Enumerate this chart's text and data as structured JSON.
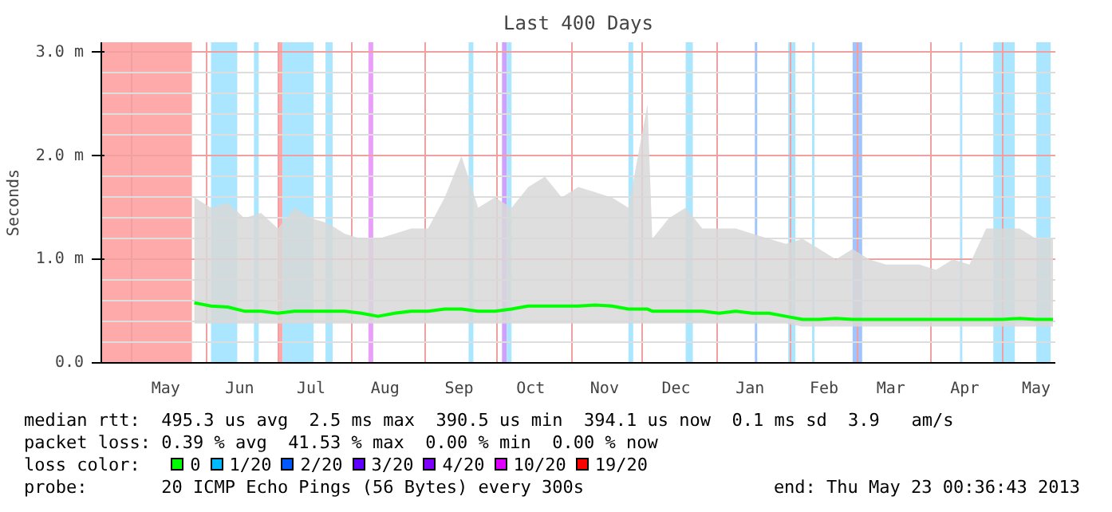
{
  "chart_data": {
    "type": "line",
    "title": "Last 400 Days",
    "ylabel": "Seconds",
    "x": [
      "2012-05-27",
      "2012-06-03",
      "2012-06-10",
      "2012-06-17",
      "2012-06-24",
      "2012-07-01",
      "2012-07-08",
      "2012-07-15",
      "2012-07-22",
      "2012-07-29",
      "2012-08-05",
      "2012-08-12",
      "2012-08-19",
      "2012-08-26",
      "2012-09-02",
      "2012-09-09",
      "2012-09-16",
      "2012-09-23",
      "2012-09-30",
      "2012-10-07",
      "2012-10-14",
      "2012-10-21",
      "2012-10-28",
      "2012-11-04",
      "2012-11-11",
      "2012-11-18",
      "2012-11-25",
      "2012-12-03",
      "2012-12-05",
      "2012-12-12",
      "2012-12-19",
      "2012-12-26",
      "2013-01-02",
      "2013-01-09",
      "2013-01-16",
      "2013-01-23",
      "2013-01-30",
      "2013-02-06",
      "2013-02-13",
      "2013-02-20",
      "2013-02-27",
      "2013-03-06",
      "2013-03-13",
      "2013-03-20",
      "2013-03-27",
      "2013-04-03",
      "2013-04-10",
      "2013-04-17",
      "2013-04-24",
      "2013-05-01",
      "2013-05-08",
      "2013-05-15",
      "2013-05-22"
    ],
    "series": [
      {
        "color": "#00ff00",
        "values": [
          0.58,
          0.55,
          0.54,
          0.5,
          0.5,
          0.48,
          0.5,
          0.5,
          0.5,
          0.5,
          0.48,
          0.45,
          0.48,
          0.5,
          0.5,
          0.52,
          0.52,
          0.5,
          0.5,
          0.52,
          0.55,
          0.55,
          0.55,
          0.55,
          0.56,
          0.55,
          0.52,
          0.52,
          0.5,
          0.5,
          0.5,
          0.5,
          0.48,
          0.5,
          0.48,
          0.48,
          0.45,
          0.42,
          0.42,
          0.43,
          0.42,
          0.42,
          0.42,
          0.42,
          0.42,
          0.42,
          0.42,
          0.42,
          0.42,
          0.42,
          0.43,
          0.42,
          0.42
        ],
        "lower": [
          0.38,
          0.38,
          0.38,
          0.38,
          0.38,
          0.38,
          0.38,
          0.38,
          0.38,
          0.38,
          0.38,
          0.38,
          0.38,
          0.38,
          0.38,
          0.38,
          0.38,
          0.38,
          0.38,
          0.38,
          0.38,
          0.38,
          0.38,
          0.38,
          0.38,
          0.38,
          0.38,
          0.38,
          0.38,
          0.38,
          0.38,
          0.38,
          0.38,
          0.38,
          0.38,
          0.38,
          0.38,
          0.35,
          0.35,
          0.35,
          0.35,
          0.35,
          0.35,
          0.35,
          0.35,
          0.35,
          0.35,
          0.35,
          0.35,
          0.35,
          0.35,
          0.35,
          0.35
        ],
        "upper": [
          1.6,
          1.5,
          1.55,
          1.4,
          1.45,
          1.3,
          1.5,
          1.4,
          1.35,
          1.25,
          1.2,
          1.2,
          1.25,
          1.3,
          1.3,
          1.6,
          2.0,
          1.5,
          1.6,
          1.5,
          1.7,
          1.8,
          1.6,
          1.7,
          1.65,
          1.6,
          1.5,
          2.5,
          1.2,
          1.4,
          1.5,
          1.3,
          1.3,
          1.3,
          1.25,
          1.2,
          1.15,
          1.2,
          1.1,
          1.0,
          1.1,
          1.0,
          0.95,
          0.95,
          0.95,
          0.9,
          1.0,
          0.95,
          1.3,
          1.3,
          1.3,
          1.2,
          1.2
        ]
      }
    ],
    "xlim": [
      "2012-04-18",
      "2013-05-23"
    ],
    "xticks": [
      {
        "value": "2012-05-01",
        "label": null
      },
      {
        "value": "2012-05-15",
        "label": "May"
      },
      {
        "value": "2012-06-01",
        "label": null
      },
      {
        "value": "2012-06-15",
        "label": "Jun"
      },
      {
        "value": "2012-07-01",
        "label": null
      },
      {
        "value": "2012-07-15",
        "label": "Jul"
      },
      {
        "value": "2012-08-01",
        "label": null
      },
      {
        "value": "2012-08-15",
        "label": "Aug"
      },
      {
        "value": "2012-09-01",
        "label": null
      },
      {
        "value": "2012-09-15",
        "label": "Sep"
      },
      {
        "value": "2012-10-01",
        "label": null
      },
      {
        "value": "2012-10-15",
        "label": "Oct"
      },
      {
        "value": "2012-11-01",
        "label": null
      },
      {
        "value": "2012-11-15",
        "label": "Nov"
      },
      {
        "value": "2012-12-01",
        "label": null
      },
      {
        "value": "2012-12-15",
        "label": "Dec"
      },
      {
        "value": "2013-01-01",
        "label": null
      },
      {
        "value": "2013-01-15",
        "label": "Jan"
      },
      {
        "value": "2013-02-01",
        "label": null
      },
      {
        "value": "2013-02-15",
        "label": "Feb"
      },
      {
        "value": "2013-03-01",
        "label": null
      },
      {
        "value": "2013-03-15",
        "label": "Mar"
      },
      {
        "value": "2013-04-01",
        "label": null
      },
      {
        "value": "2013-04-15",
        "label": "Apr"
      },
      {
        "value": "2013-05-01",
        "label": null
      },
      {
        "value": "2013-05-15",
        "label": "May"
      }
    ],
    "ylim": [
      0,
      3.1
    ],
    "yticks": [
      {
        "value": 0,
        "label": "0.0"
      },
      {
        "value": 0.2,
        "label": null
      },
      {
        "value": 0.4,
        "label": null
      },
      {
        "value": 0.6,
        "label": null
      },
      {
        "value": 0.8,
        "label": null
      },
      {
        "value": 1,
        "label": "1.0 m"
      },
      {
        "value": 1.2,
        "label": null
      },
      {
        "value": 1.4,
        "label": null
      },
      {
        "value": 1.6,
        "label": null
      },
      {
        "value": 1.8,
        "label": null
      },
      {
        "value": 2,
        "label": "2.0 m"
      },
      {
        "value": 2.2,
        "label": null
      },
      {
        "value": 2.4,
        "label": null
      },
      {
        "value": 2.6,
        "label": null
      },
      {
        "value": 2.8,
        "label": null
      },
      {
        "value": 3,
        "label": "3.0 m"
      }
    ],
    "grid": true,
    "bands": [
      {
        "axis": "x",
        "from": "2012-04-18",
        "to": "2012-05-26",
        "color": "#ffaaaa"
      },
      {
        "axis": "x",
        "from": "2012-06-03",
        "to": "2012-06-14",
        "color": "#aae6ff"
      },
      {
        "axis": "x",
        "from": "2012-06-21",
        "to": "2012-06-23",
        "color": "#aae6ff"
      },
      {
        "axis": "x",
        "from": "2012-07-01",
        "to": "2012-07-03",
        "color": "#ffaaaa"
      },
      {
        "axis": "x",
        "from": "2012-07-03",
        "to": "2012-07-16",
        "color": "#aae6ff"
      },
      {
        "axis": "x",
        "from": "2012-07-21",
        "to": "2012-07-24",
        "color": "#aae6ff"
      },
      {
        "axis": "x",
        "from": "2012-08-08",
        "to": "2012-08-10",
        "color": "#e8a0f8"
      },
      {
        "axis": "x",
        "from": "2012-09-19",
        "to": "2012-09-21",
        "color": "#aae6ff"
      },
      {
        "axis": "x",
        "from": "2012-10-03",
        "to": "2012-10-05",
        "color": "#d0a0ff"
      },
      {
        "axis": "x",
        "from": "2012-10-05",
        "to": "2012-10-07",
        "color": "#aae6ff"
      },
      {
        "axis": "x",
        "from": "2012-11-25",
        "to": "2012-11-27",
        "color": "#aae6ff"
      },
      {
        "axis": "x",
        "from": "2012-12-19",
        "to": "2012-12-22",
        "color": "#aae6ff"
      },
      {
        "axis": "x",
        "from": "2013-01-17",
        "to": "2013-01-18",
        "color": "#a0c4ff"
      },
      {
        "axis": "x",
        "from": "2013-01-31",
        "to": "2013-02-03",
        "color": "#aae6ff"
      },
      {
        "axis": "x",
        "from": "2013-02-10",
        "to": "2013-02-11",
        "color": "#aae6ff"
      },
      {
        "axis": "x",
        "from": "2013-02-27",
        "to": "2013-03-03",
        "color": "#a0c4ff"
      },
      {
        "axis": "x",
        "from": "2013-04-13",
        "to": "2013-04-14",
        "color": "#aae6ff"
      },
      {
        "axis": "x",
        "from": "2013-04-27",
        "to": "2013-05-06",
        "color": "#aae6ff"
      },
      {
        "axis": "x",
        "from": "2013-05-15",
        "to": "2013-05-21",
        "color": "#aae6ff"
      }
    ],
    "annotations": [
      "median rtt:  495.3 us avg  2.5 ms max  390.5 us min  394.1 us now  0.1 ms sd  3.9   am/s",
      "packet loss: 0.39 % avg  41.53 % max  0.00 % min  0.00 % now",
      "loss color:",
      "0",
      "1/20",
      "2/20",
      "3/20",
      "4/20",
      "10/20",
      "19/20",
      "probe:       20 ICMP Echo Pings (56 Bytes) every 300s",
      "end: Thu May 23 00:36:43 2013"
    ]
  }
}
